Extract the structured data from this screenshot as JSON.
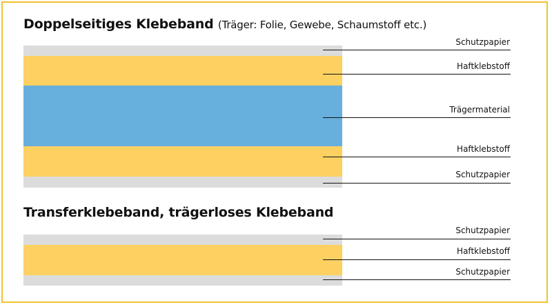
{
  "diagram1": {
    "title": "Doppelseitiges Klebeband",
    "subtitle": "(Träger: Folie, Gewebe, Schaumstoff etc.)",
    "labels": [
      "Schutzpapier",
      "Haftklebstoff",
      "Trägermaterial",
      "Haftklebstoff",
      "Schutzpapier"
    ]
  },
  "diagram2": {
    "title": "Transferklebeband, trägerloses Klebeband",
    "labels": [
      "Schutzpapier",
      "Haftklebstoff",
      "Schutzpapier"
    ]
  },
  "colors": {
    "frame": "#f2c230",
    "protective_paper": "#dcdcdc",
    "adhesive": "#fdd062",
    "carrier": "#67afdd"
  }
}
